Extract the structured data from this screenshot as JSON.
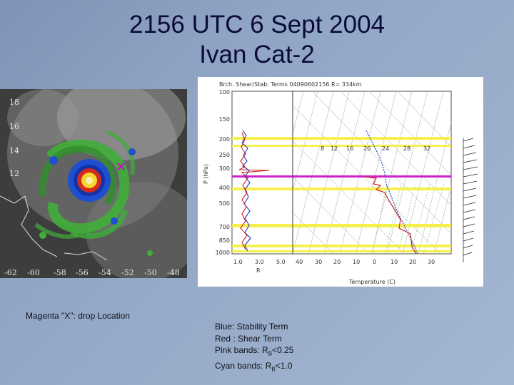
{
  "slide": {
    "title_line1": "2156 UTC 6 Sept 2004",
    "title_line2": "Ivan Cat-2",
    "caption": "Magenta \"X\": drop Location"
  },
  "satellite": {
    "lat_labels": [
      "18",
      "16",
      "14",
      "12"
    ],
    "lon_labels": [
      "-62",
      "-60",
      "-58",
      "-56",
      "-54",
      "-52",
      "-50",
      "-48"
    ]
  },
  "diagram": {
    "header": "Brch. Shear/Stab. Terms 04090602156 R= 334km",
    "y_axis_label": "P (hPa)",
    "x_axis_label": "Temperature (C)",
    "pressure_ticks": [
      "100",
      "150",
      "200",
      "250",
      "300",
      "400",
      "500",
      "700",
      "850",
      "1000"
    ],
    "left_ticks": [
      "1.0",
      "3.0",
      "5.0"
    ],
    "temp_ticks": [
      "40",
      "30",
      "20",
      "10",
      "0",
      "10",
      "20",
      "30"
    ],
    "mixing_ticks": [
      "8",
      "12",
      "16",
      "20",
      "24",
      "28",
      "32"
    ],
    "left_axis_label": "R"
  },
  "legend": {
    "line1": "Blue: Stability Term",
    "line2": "Red : Shear Term",
    "line3_prefix": "Pink bands: R",
    "line3_sub": "B",
    "line3_suffix": "<0.25",
    "line4_prefix": "Cyan bands: R",
    "line4_sub": "B",
    "line4_suffix": "<1.0"
  }
}
